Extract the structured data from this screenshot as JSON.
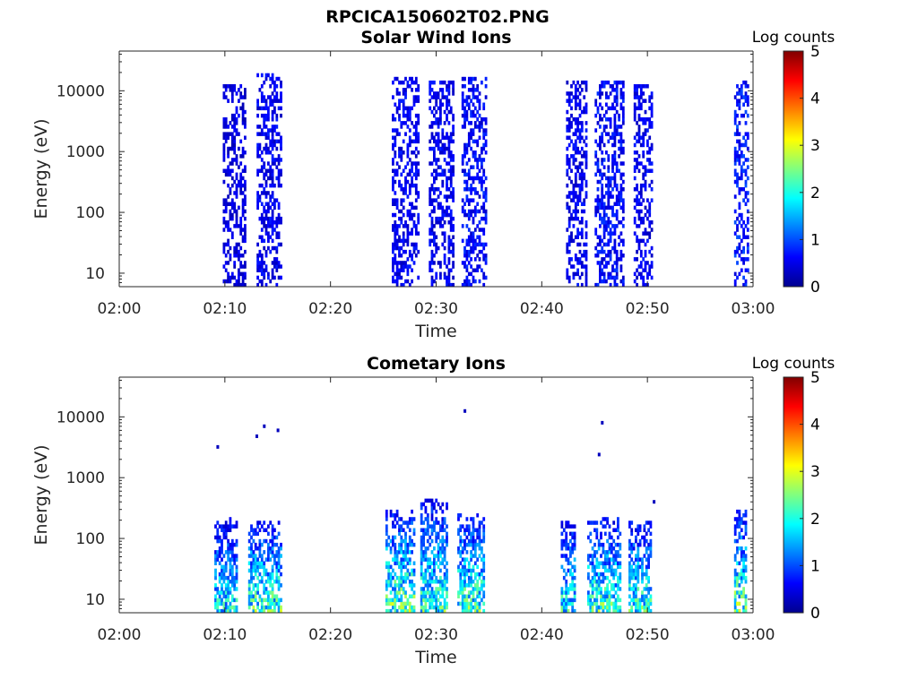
{
  "figure_title": "RPCICA150602T02.PNG",
  "chart_data": [
    {
      "type": "heatmap",
      "title": "Solar Wind Ions",
      "xlabel": "Time",
      "ylabel": "Energy (eV)",
      "x_range": [
        "02:00",
        "03:00"
      ],
      "y_range": [
        6,
        45000
      ],
      "y_scale": "log",
      "x_ticks": [
        "02:00",
        "02:10",
        "02:20",
        "02:30",
        "02:40",
        "02:50",
        "03:00"
      ],
      "y_ticks": [
        "10",
        "100",
        "1000",
        "10000"
      ],
      "colorbar": {
        "label": "Log counts",
        "range": [
          0,
          5
        ],
        "ticks": [
          "0",
          "1",
          "2",
          "3",
          "4",
          "5"
        ],
        "colormap": "jet"
      },
      "bursts": [
        {
          "start_min": 9.8,
          "end_min": 11.8,
          "emin": 6,
          "emax": 13000,
          "level": 0.5
        },
        {
          "start_min": 13.0,
          "end_min": 15.2,
          "emin": 6,
          "emax": 20000,
          "level": 0.6
        },
        {
          "start_min": 25.8,
          "end_min": 28.2,
          "emin": 6,
          "emax": 18000,
          "level": 0.6
        },
        {
          "start_min": 29.3,
          "end_min": 31.5,
          "emin": 6,
          "emax": 15000,
          "level": 0.6
        },
        {
          "start_min": 32.4,
          "end_min": 34.8,
          "emin": 6,
          "emax": 18000,
          "level": 0.7
        },
        {
          "start_min": 42.3,
          "end_min": 44.2,
          "emin": 6,
          "emax": 15000,
          "level": 0.6
        },
        {
          "start_min": 45.0,
          "end_min": 47.8,
          "emin": 6,
          "emax": 15000,
          "level": 0.7
        },
        {
          "start_min": 48.7,
          "end_min": 50.5,
          "emin": 6,
          "emax": 13000,
          "level": 0.6
        },
        {
          "start_min": 58.2,
          "end_min": 59.6,
          "emin": 6,
          "emax": 15000,
          "level": 0.8
        }
      ]
    },
    {
      "type": "heatmap",
      "title": "Cometary Ions",
      "xlabel": "Time",
      "ylabel": "Energy (eV)",
      "x_range": [
        "02:00",
        "03:00"
      ],
      "y_range": [
        6,
        45000
      ],
      "y_scale": "log",
      "x_ticks": [
        "02:00",
        "02:10",
        "02:20",
        "02:30",
        "02:40",
        "02:50",
        "03:00"
      ],
      "y_ticks": [
        "10",
        "100",
        "1000",
        "10000"
      ],
      "colorbar": {
        "label": "Log counts",
        "range": [
          0,
          5
        ],
        "ticks": [
          "0",
          "1",
          "2",
          "3",
          "4",
          "5"
        ],
        "colormap": "jet"
      },
      "bursts": [
        {
          "start_min": 9.0,
          "end_min": 11.0,
          "emin": 6,
          "emax": 220,
          "level": 1.6
        },
        {
          "start_min": 12.2,
          "end_min": 15.2,
          "emin": 6,
          "emax": 200,
          "level": 1.9
        },
        {
          "start_min": 25.2,
          "end_min": 27.8,
          "emin": 6,
          "emax": 300,
          "level": 2.0
        },
        {
          "start_min": 28.5,
          "end_min": 31.0,
          "emin": 6,
          "emax": 450,
          "level": 1.8
        },
        {
          "start_min": 32.0,
          "end_min": 34.5,
          "emin": 6,
          "emax": 250,
          "level": 1.9
        },
        {
          "start_min": 41.8,
          "end_min": 43.2,
          "emin": 6,
          "emax": 200,
          "level": 1.7
        },
        {
          "start_min": 44.3,
          "end_min": 47.5,
          "emin": 6,
          "emax": 220,
          "level": 1.9
        },
        {
          "start_min": 48.2,
          "end_min": 50.3,
          "emin": 6,
          "emax": 200,
          "level": 1.8
        },
        {
          "start_min": 58.2,
          "end_min": 59.3,
          "emin": 6,
          "emax": 280,
          "level": 2.0
        }
      ],
      "isolated_points": [
        {
          "time_min": 9.2,
          "energy": 3200,
          "level": 0.3
        },
        {
          "time_min": 12.9,
          "energy": 4800,
          "level": 0.3
        },
        {
          "time_min": 13.6,
          "energy": 7000,
          "level": 0.3
        },
        {
          "time_min": 14.9,
          "energy": 6000,
          "level": 0.3
        },
        {
          "time_min": 32.6,
          "energy": 12500,
          "level": 0.3
        },
        {
          "time_min": 45.3,
          "energy": 2400,
          "level": 0.3
        },
        {
          "time_min": 45.6,
          "energy": 8000,
          "level": 0.3
        },
        {
          "time_min": 50.5,
          "energy": 400,
          "level": 0.3
        }
      ]
    }
  ]
}
